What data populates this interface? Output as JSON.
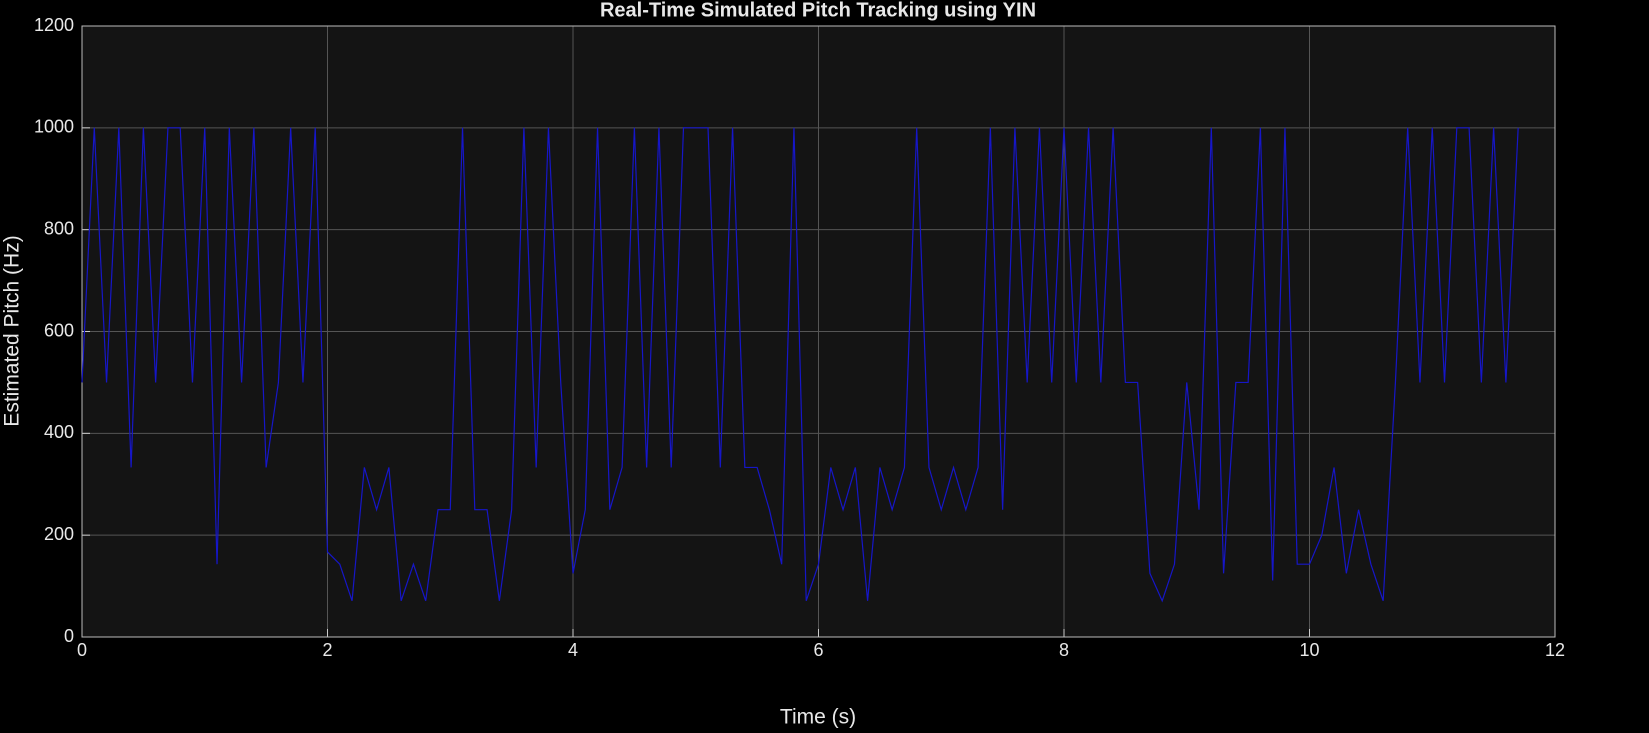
{
  "chart_data": {
    "type": "line",
    "title": "Real-Time Simulated Pitch Tracking using YIN",
    "x_label": "Time (s)",
    "y_label": "Estimated Pitch (Hz)",
    "x": [
      0.0,
      0.1,
      0.2,
      0.3,
      0.4,
      0.5,
      0.6,
      0.7,
      0.8,
      0.9,
      1.0,
      1.1,
      1.2,
      1.3,
      1.4,
      1.5,
      1.6,
      1.7,
      1.8,
      1.9,
      2.0,
      2.1,
      2.2,
      2.3,
      2.4,
      2.5,
      2.6,
      2.7,
      2.8,
      2.9,
      3.0,
      3.1,
      3.2,
      3.3,
      3.4,
      3.5,
      3.6,
      3.7,
      3.8,
      3.9,
      4.0,
      4.1,
      4.2,
      4.3,
      4.4,
      4.5,
      4.6,
      4.7,
      4.8,
      4.9,
      5.0,
      5.1,
      5.2,
      5.3,
      5.4,
      5.5,
      5.6,
      5.7,
      5.8,
      5.9,
      6.0,
      6.1,
      6.2,
      6.3,
      6.4,
      6.5,
      6.6,
      6.7,
      6.8,
      6.9,
      7.0,
      7.1,
      7.2,
      7.3,
      7.4,
      7.5,
      7.6,
      7.7,
      7.8,
      7.9,
      8.0,
      8.1,
      8.2,
      8.3,
      8.4,
      8.5,
      8.6,
      8.7,
      8.8,
      8.9,
      9.0,
      9.1,
      9.2,
      9.3,
      9.4,
      9.5,
      9.6,
      9.7,
      9.8,
      9.9,
      10.0,
      10.1,
      10.2,
      10.3,
      10.4,
      10.5,
      10.6,
      10.7,
      10.8,
      10.9,
      11.0,
      11.1,
      11.2,
      11.3,
      11.4,
      11.5,
      11.6,
      11.7
    ],
    "values": [
      500,
      1000,
      500,
      1000,
      333,
      1000,
      500,
      1000,
      1000,
      500,
      1000,
      143,
      1000,
      500,
      1000,
      333,
      500,
      1000,
      500,
      1000,
      167,
      143,
      71,
      333,
      250,
      333,
      71,
      143,
      71,
      250,
      250,
      1000,
      250,
      250,
      71,
      250,
      1000,
      333,
      1000,
      500,
      125,
      250,
      1000,
      250,
      333,
      1000,
      333,
      1000,
      333,
      1000,
      1000,
      1000,
      333,
      1000,
      333,
      333,
      250,
      143,
      1000,
      71,
      143,
      333,
      250,
      333,
      71,
      333,
      250,
      333,
      1000,
      333,
      250,
      333,
      250,
      333,
      1000,
      250,
      1000,
      500,
      1000,
      500,
      1000,
      500,
      1000,
      500,
      1000,
      500,
      500,
      125,
      71,
      143,
      500,
      250,
      1000,
      125,
      500,
      500,
      1000,
      111,
      1000,
      143,
      143,
      200,
      333,
      125,
      250,
      143,
      71,
      500,
      1000,
      500,
      1000,
      500,
      1000,
      1000,
      500,
      1000,
      500,
      1000
    ],
    "color": "#1616c8",
    "background": "#000000",
    "plot_background": "#141414",
    "xlim": [
      0,
      12
    ],
    "xticks": [
      0,
      2,
      4,
      6,
      8,
      10,
      12
    ],
    "ylim": [
      0,
      1200
    ],
    "yticks": [
      0,
      200,
      400,
      600,
      800,
      1000,
      1200
    ],
    "grid": true
  }
}
